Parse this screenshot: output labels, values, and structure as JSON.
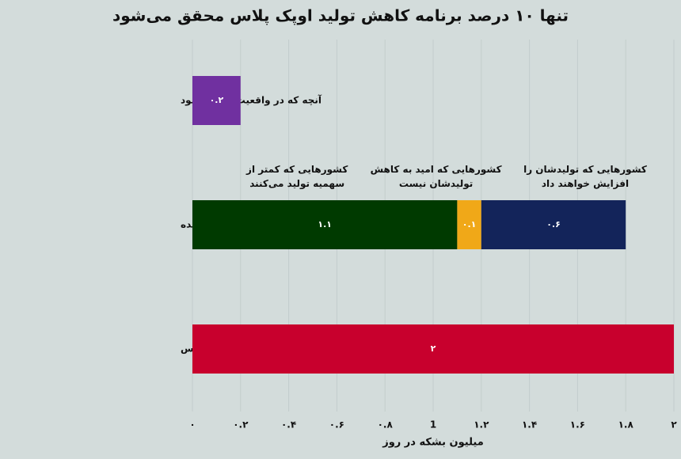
{
  "chart_data": {
    "type": "stacked-bar-horizontal",
    "title": "تنها ۱۰ درصد برنامه کاهش تولید اوپک پلاس محقق می‌شود",
    "x_label": "میلیون بشکه در روز",
    "categories": [
      "آنچه که در واقعیت کم می‌شود",
      "کاهش تولید محقق نشده یا جبران شده",
      "کاهش تولید هدف‌گذاری شده در اوپک پلاس"
    ],
    "series": [
      {
        "color": "#7030a0",
        "values": [
          0.2,
          null,
          null
        ],
        "value_labels": [
          "۰.۲",
          null,
          null
        ]
      },
      {
        "name": "کشورهایی که کمتر از سهمیه تولید می‌کنند",
        "color": "#003a00",
        "values": [
          null,
          1.1,
          null
        ],
        "value_labels": [
          null,
          "۱.۱",
          null
        ]
      },
      {
        "name": "کشورهایی که امید به کاهش تولیدشان نیست",
        "color": "#f0a818",
        "values": [
          null,
          0.1,
          null
        ],
        "value_labels": [
          null,
          "۰.۱",
          null
        ]
      },
      {
        "name": "کشورهایی که تولیدشان را افزایش خواهند داد",
        "color": "#13245a",
        "values": [
          null,
          0.6,
          null
        ],
        "value_labels": [
          null,
          "۰.۶",
          null
        ]
      },
      {
        "color": "#c8002d",
        "values": [
          null,
          null,
          2
        ],
        "value_labels": [
          null,
          null,
          "۲"
        ]
      }
    ],
    "xlim": [
      0,
      2
    ],
    "xticks": [
      {
        "value": 0,
        "label": "۰"
      },
      {
        "value": 0.2,
        "label": "۰.۲"
      },
      {
        "value": 0.4,
        "label": "۰.۴"
      },
      {
        "value": 0.6,
        "label": "۰.۶"
      },
      {
        "value": 0.8,
        "label": "۰.۸"
      },
      1,
      {
        "value": 1.2,
        "label": "۱.۲"
      },
      {
        "value": 1.4,
        "label": "۱.۴"
      },
      {
        "value": 1.6,
        "label": "۱.۶"
      },
      {
        "value": 1.8,
        "label": "۱.۸"
      },
      {
        "value": 2,
        "label": "۲"
      }
    ],
    "grid": true
  }
}
